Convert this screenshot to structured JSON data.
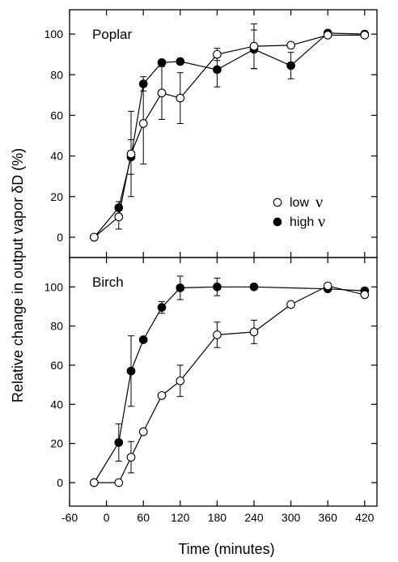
{
  "chart_data": [
    {
      "type": "line",
      "title": "Poplar",
      "xlabel": "Time (minutes)",
      "ylabel": "Relative change in output vapor δD (%)",
      "xlim": [
        -60,
        440
      ],
      "ylim": [
        -10,
        112
      ],
      "x_ticks": [
        -60,
        0,
        60,
        120,
        180,
        240,
        300,
        360,
        420
      ],
      "y_ticks": [
        0,
        20,
        40,
        60,
        80,
        100
      ],
      "legend": {
        "position": "lower-right",
        "entries": [
          {
            "marker": "open-circle",
            "text": "low",
            "symbol": "ν"
          },
          {
            "marker": "filled-circle",
            "text": "high",
            "symbol": "ν"
          }
        ]
      },
      "series": [
        {
          "marker": "open-circle",
          "points": [
            {
              "x": -20,
              "y": 0
            },
            {
              "x": 20,
              "y": 10,
              "err": 6
            },
            {
              "x": 40,
              "y": 41,
              "err": 21
            },
            {
              "x": 60,
              "y": 56,
              "err": 20
            },
            {
              "x": 90,
              "y": 71,
              "err": 13
            },
            {
              "x": 120,
              "y": 68.5,
              "err": 12.5
            },
            {
              "x": 180,
              "y": 90,
              "err": 3
            },
            {
              "x": 240,
              "y": 94,
              "err": 11
            },
            {
              "x": 300,
              "y": 94.5
            },
            {
              "x": 360,
              "y": 99.5
            },
            {
              "x": 420,
              "y": 99.5
            }
          ]
        },
        {
          "marker": "filled-circle",
          "points": [
            {
              "x": -20,
              "y": 0
            },
            {
              "x": 20,
              "y": 14.5,
              "err": 3
            },
            {
              "x": 40,
              "y": 39.5,
              "err": 8.5
            },
            {
              "x": 60,
              "y": 75.5,
              "err": 3.5
            },
            {
              "x": 90,
              "y": 86
            },
            {
              "x": 120,
              "y": 86.5
            },
            {
              "x": 180,
              "y": 82.5,
              "err": 8.5
            },
            {
              "x": 240,
              "y": 92.5,
              "err": 9.5
            },
            {
              "x": 300,
              "y": 84.5,
              "err": 6.5
            },
            {
              "x": 360,
              "y": 100.5
            },
            {
              "x": 420,
              "y": 100
            }
          ]
        }
      ]
    },
    {
      "type": "line",
      "title": "Birch",
      "xlabel": "Time (minutes)",
      "ylabel": "Relative change in output vapor δD (%)",
      "xlim": [
        -60,
        440
      ],
      "ylim": [
        -12,
        115
      ],
      "x_ticks": [
        -60,
        0,
        60,
        120,
        180,
        240,
        300,
        360,
        420
      ],
      "x_tick_labels": [
        "-60",
        "0",
        "60",
        "120",
        "180",
        "240",
        "300",
        "360",
        "420"
      ],
      "y_ticks": [
        0,
        20,
        40,
        60,
        80,
        100
      ],
      "series": [
        {
          "marker": "open-circle",
          "points": [
            {
              "x": -20,
              "y": 0
            },
            {
              "x": 20,
              "y": 0
            },
            {
              "x": 40,
              "y": 13,
              "err": 8
            },
            {
              "x": 60,
              "y": 26
            },
            {
              "x": 90,
              "y": 44.5
            },
            {
              "x": 120,
              "y": 52,
              "err": 8
            },
            {
              "x": 180,
              "y": 75.5,
              "err": 6.5
            },
            {
              "x": 240,
              "y": 77,
              "err": 6
            },
            {
              "x": 300,
              "y": 91
            },
            {
              "x": 360,
              "y": 100.5
            },
            {
              "x": 420,
              "y": 96
            }
          ]
        },
        {
          "marker": "filled-circle",
          "points": [
            {
              "x": -20,
              "y": 0
            },
            {
              "x": 20,
              "y": 20.5,
              "err": 9.5
            },
            {
              "x": 40,
              "y": 57,
              "err": 18
            },
            {
              "x": 60,
              "y": 73
            },
            {
              "x": 90,
              "y": 89.5,
              "err": 3
            },
            {
              "x": 120,
              "y": 99.5,
              "err": 6
            },
            {
              "x": 180,
              "y": 100,
              "err": 4.5
            },
            {
              "x": 240,
              "y": 100
            },
            {
              "x": 360,
              "y": 99
            },
            {
              "x": 420,
              "y": 98
            }
          ]
        }
      ]
    }
  ]
}
